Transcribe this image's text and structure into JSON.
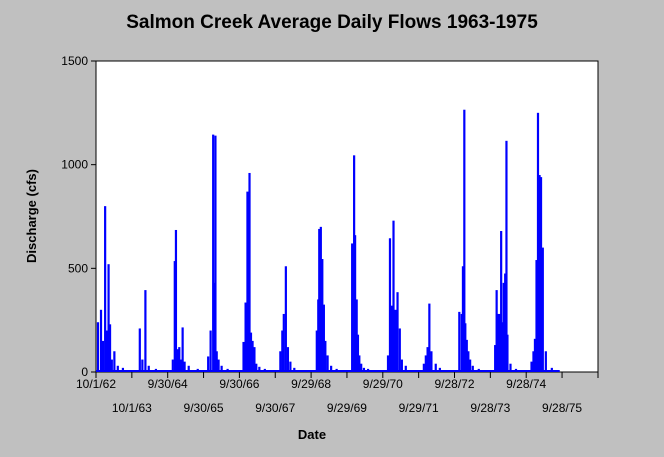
{
  "chart_data": {
    "type": "bar",
    "title": "Salmon Creek Average Daily Flows 1963-1975",
    "xlabel": "Date",
    "ylabel": "Discharge (cfs)",
    "ylim": [
      0,
      1500
    ],
    "yticks": [
      "0",
      "500",
      "1000",
      "1500"
    ],
    "xlim": [
      "1962-10-01",
      "1976-09-28"
    ],
    "xticks": [
      {
        "date": "1962-10-01",
        "label": "10/1/62"
      },
      {
        "date": "1963-10-01",
        "label": "10/1/63"
      },
      {
        "date": "1964-09-30",
        "label": "9/30/64"
      },
      {
        "date": "1965-09-30",
        "label": "9/30/65"
      },
      {
        "date": "1966-09-30",
        "label": "9/30/66"
      },
      {
        "date": "1967-09-30",
        "label": "9/30/67"
      },
      {
        "date": "1968-09-29",
        "label": "9/29/68"
      },
      {
        "date": "1969-09-29",
        "label": "9/29/69"
      },
      {
        "date": "1970-09-29",
        "label": "9/29/70"
      },
      {
        "date": "1971-09-29",
        "label": "9/29/71"
      },
      {
        "date": "1972-09-28",
        "label": "9/28/72"
      },
      {
        "date": "1973-09-28",
        "label": "9/28/73"
      },
      {
        "date": "1974-09-28",
        "label": "9/28/74"
      },
      {
        "date": "1975-09-28",
        "label": "9/28/75"
      },
      {
        "date": "1976-09-28",
        "label": ""
      }
    ],
    "color": "#0000ff",
    "series": [
      {
        "x": [
          "1962-10-20",
          "1962-11-20",
          "1962-12-10",
          "1963-01-01",
          "1963-01-15",
          "1963-02-05",
          "1963-02-20",
          "1963-03-10",
          "1963-04-05",
          "1963-05-10",
          "1963-07-01",
          "1963-12-20",
          "1964-01-15",
          "1964-02-15",
          "1964-03-20",
          "1964-06-01",
          "1964-11-20",
          "1964-12-10",
          "1964-12-22",
          "1965-01-10",
          "1965-01-25",
          "1965-02-10",
          "1965-02-28",
          "1965-03-20",
          "1965-05-01",
          "1965-08-01",
          "1965-11-15",
          "1965-12-10",
          "1966-01-05",
          "1966-01-15",
          "1966-01-28",
          "1966-02-10",
          "1966-03-01",
          "1966-04-01",
          "1966-06-01",
          "1966-11-10",
          "1966-12-01",
          "1966-12-20",
          "1967-01-10",
          "1967-01-25",
          "1967-02-10",
          "1967-03-01",
          "1967-03-20",
          "1967-04-20",
          "1967-06-15",
          "1967-11-20",
          "1967-12-10",
          "1967-12-25",
          "1968-01-15",
          "1968-02-05",
          "1968-03-01",
          "1968-04-10",
          "1968-11-25",
          "1968-12-10",
          "1968-12-20",
          "1969-01-05",
          "1969-01-20",
          "1969-02-05",
          "1969-02-20",
          "1969-03-15",
          "1969-04-20",
          "1969-06-15",
          "1969-11-20",
          "1969-12-10",
          "1969-12-20",
          "1970-01-05",
          "1970-01-18",
          "1970-02-01",
          "1970-02-20",
          "1970-03-20",
          "1970-05-01",
          "1970-11-20",
          "1970-12-10",
          "1970-12-28",
          "1971-01-15",
          "1971-02-05",
          "1971-02-25",
          "1971-03-20",
          "1971-04-10",
          "1971-05-20",
          "1971-11-20",
          "1971-12-10",
          "1971-12-28",
          "1972-01-15",
          "1972-02-05",
          "1972-03-20",
          "1972-05-01",
          "1972-11-15",
          "1972-12-10",
          "1972-12-22",
          "1973-01-05",
          "1973-01-15",
          "1973-01-30",
          "1973-02-15",
          "1973-03-05",
          "1973-04-01",
          "1973-06-01",
          "1973-11-15",
          "1973-11-30",
          "1973-12-15",
          "1974-01-01",
          "1974-01-15",
          "1974-01-28",
          "1974-02-10",
          "1974-02-25",
          "1974-03-10",
          "1974-03-20",
          "1974-04-20",
          "1974-06-15",
          "1974-11-20",
          "1974-12-10",
          "1974-12-25",
          "1975-01-10",
          "1975-01-25",
          "1975-02-10",
          "1975-02-25",
          "1975-03-15",
          "1975-04-15",
          "1975-06-15"
        ],
        "values": [
          240,
          300,
          150,
          800,
          200,
          520,
          230,
          60,
          100,
          30,
          20,
          210,
          60,
          395,
          30,
          15,
          60,
          535,
          685,
          110,
          120,
          60,
          215,
          50,
          30,
          15,
          75,
          200,
          1145,
          430,
          1140,
          100,
          60,
          30,
          15,
          145,
          335,
          870,
          960,
          190,
          150,
          120,
          40,
          25,
          15,
          100,
          200,
          280,
          510,
          120,
          50,
          20,
          200,
          350,
          690,
          700,
          545,
          325,
          150,
          80,
          30,
          15,
          620,
          1045,
          660,
          350,
          180,
          80,
          40,
          20,
          15,
          80,
          645,
          320,
          730,
          300,
          385,
          210,
          60,
          30,
          40,
          80,
          120,
          330,
          100,
          40,
          20,
          290,
          280,
          510,
          1265,
          235,
          155,
          100,
          60,
          30,
          15,
          130,
          395,
          280,
          280,
          680,
          240,
          430,
          475,
          1115,
          180,
          40,
          15,
          50,
          100,
          160,
          540,
          1250,
          950,
          940,
          600,
          100,
          20
        ]
      }
    ]
  }
}
